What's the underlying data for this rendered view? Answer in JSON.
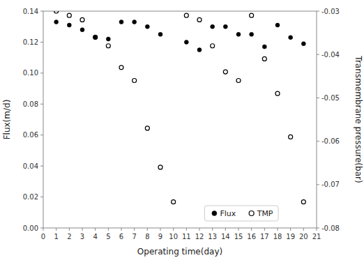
{
  "chart_data": {
    "type": "scatter",
    "xlabel": "Operating time(day)",
    "ylabel": "Flux(m/d)",
    "y2label": "Transmembrane pressure(bar)",
    "xlim": [
      0,
      21
    ],
    "xticks": [
      0,
      1,
      2,
      3,
      4,
      5,
      6,
      7,
      8,
      9,
      10,
      11,
      12,
      13,
      14,
      15,
      16,
      17,
      18,
      19,
      20,
      21
    ],
    "ylim": [
      0,
      0.14
    ],
    "yticks": [
      {
        "value": 0,
        "label": "0.00"
      },
      0.02,
      0.04,
      0.06,
      0.08,
      {
        "value": 0.1,
        "label": "0.10"
      },
      0.12,
      0.14
    ],
    "y2lim": [
      -0.08,
      -0.03
    ],
    "y2ticks": [
      -0.08,
      -0.07,
      -0.06,
      -0.05,
      -0.04,
      -0.03
    ],
    "grid": false,
    "legend": "lower right",
    "series": [
      {
        "name": "Flux",
        "color": "black",
        "marker": "circle",
        "x": [
          1,
          2,
          3,
          4,
          5,
          6,
          7,
          8,
          9,
          11,
          12,
          13,
          14,
          15,
          16,
          17,
          18,
          19,
          20
        ],
        "values": [
          0.133,
          0.131,
          0.128,
          0.123,
          0.122,
          0.133,
          0.133,
          0.13,
          0.125,
          0.12,
          0.115,
          0.13,
          0.13,
          0.125,
          0.125,
          0.117,
          0.131,
          0.123,
          0.119
        ]
      },
      {
        "name": "TMP",
        "color": "black",
        "marker": "circle-open",
        "axis": "y2",
        "x": [
          1,
          2,
          3,
          4,
          5,
          6,
          7,
          8,
          9,
          10,
          11,
          12,
          13,
          14,
          15,
          16,
          17,
          18,
          19,
          20
        ],
        "values": [
          -0.03,
          -0.031,
          -0.032,
          -0.036,
          -0.038,
          -0.043,
          -0.046,
          -0.057,
          -0.066,
          -0.074,
          -0.031,
          -0.032,
          -0.038,
          -0.044,
          -0.046,
          -0.031,
          -0.041,
          -0.049,
          -0.059,
          -0.074
        ]
      }
    ]
  }
}
